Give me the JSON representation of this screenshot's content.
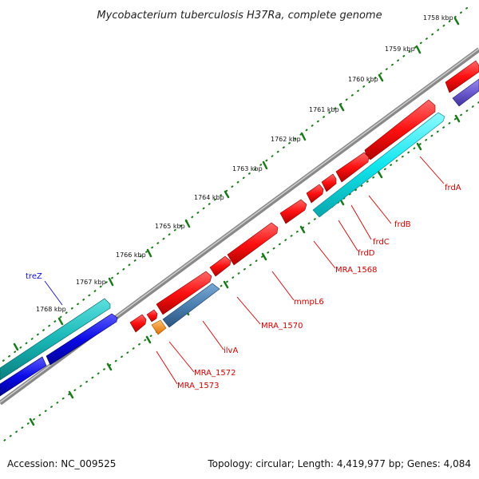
{
  "title": "Mycobacterium tuberculosis H37Ra, complete genome",
  "footer": {
    "accession": "Accession: NC_009525",
    "topology": "Topology: circular; Length: 4,419,977 bp; Genes: 4,084"
  },
  "kbp_labels": [
    "1758 kbp",
    "1759 kbp",
    "1760 kbp",
    "1761 kbp",
    "1762 kbp",
    "1763 kbp",
    "1764 kbp",
    "1765 kbp",
    "1766 kbp",
    "1767 kbp",
    "1768 kbp"
  ],
  "genes": {
    "frdA": "frdA",
    "frdB": "frdB",
    "frdC": "frdC",
    "frdD": "frdD",
    "mra1568": "MRA_1568",
    "mmpL6": "mmpL6",
    "mra1570": "MRA_1570",
    "ilvA": "ilvA",
    "mra1572": "MRA_1572",
    "mra1573": "MRA_1573",
    "treZ": "treZ"
  },
  "colors": {
    "forward_gene": "#ff1010",
    "reverse_gene_cyan": "#11e6ee",
    "reverse_gene_steel": "#4a7fb0",
    "reverse_gene_orange": "#ff8a00",
    "teal_gene": "#19b6b6",
    "blue_gene": "#0a0ae6",
    "violet_gene": "#6a5acd",
    "backbone": "#888888",
    "ticks": "#1a7a1a"
  }
}
